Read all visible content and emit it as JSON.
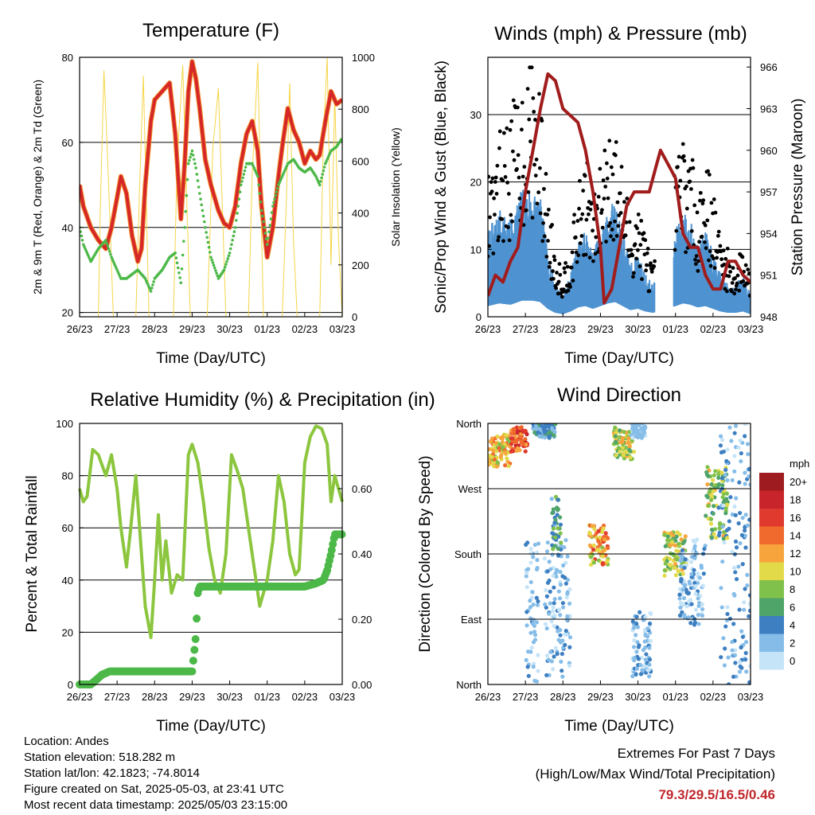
{
  "x_ticks": [
    "26/23",
    "27/23",
    "28/23",
    "29/23",
    "30/23",
    "01/23",
    "02/23",
    "03/23"
  ],
  "chart_data": [
    {
      "type": "line",
      "title": "Temperature (F)",
      "xlabel": "Time (Day/UTC)",
      "ylabel": "2m & 9m T (Red, Orange) & 2m Td (Green)",
      "ylabel_right": "Solar Insolation (Yellow)",
      "ylim": [
        19,
        80
      ],
      "yticks": [
        20,
        40,
        60,
        80
      ],
      "ylim_right": [
        0,
        1000
      ],
      "yticks_right": [
        0,
        200,
        400,
        600,
        800,
        1000
      ],
      "grid": true,
      "colors": {
        "temp2m": "#d62728",
        "temp9m": "#f28e2b",
        "dewpoint": "#4cb848",
        "solar": "#f5d547"
      },
      "series": [
        {
          "key": "temp2m",
          "x": [
            0,
            0.1,
            0.3,
            0.5,
            0.7,
            0.85,
            1.0,
            1.1,
            1.25,
            1.4,
            1.55,
            1.65,
            1.75,
            1.9,
            2.0,
            2.2,
            2.4,
            2.55,
            2.7,
            2.8,
            2.9,
            3.0,
            3.1,
            3.2,
            3.35,
            3.5,
            3.7,
            3.85,
            4.0,
            4.15,
            4.3,
            4.45,
            4.6,
            4.75,
            4.85,
            5.0,
            5.15,
            5.3,
            5.4,
            5.55,
            5.7,
            5.85,
            6.0,
            6.15,
            6.3,
            6.4,
            6.55,
            6.7,
            6.85,
            7.0
          ],
          "y": [
            50,
            45,
            40,
            37,
            35,
            40,
            47,
            52,
            48,
            38,
            32,
            35,
            50,
            65,
            70,
            72,
            74,
            62,
            42,
            55,
            72,
            79,
            75,
            68,
            56,
            50,
            44,
            41,
            40,
            45,
            55,
            62,
            65,
            58,
            45,
            33,
            40,
            52,
            59,
            68,
            63,
            60,
            55,
            58,
            56,
            57,
            65,
            72,
            69,
            70
          ]
        },
        {
          "key": "dewpoint",
          "x": [
            0,
            0.1,
            0.3,
            0.5,
            0.7,
            0.85,
            1.0,
            1.1,
            1.25,
            1.4,
            1.55,
            1.65,
            1.75,
            1.9,
            2.0,
            2.2,
            2.4,
            2.55,
            2.7,
            2.8,
            2.9,
            3.0,
            3.1,
            3.2,
            3.35,
            3.5,
            3.7,
            3.85,
            4.0,
            4.15,
            4.3,
            4.45,
            4.6,
            4.75,
            4.85,
            5.0,
            5.15,
            5.3,
            5.4,
            5.55,
            5.7,
            5.85,
            6.0,
            6.15,
            6.3,
            6.4,
            6.55,
            6.7,
            6.85,
            7.0
          ],
          "y": [
            40,
            36,
            32,
            35,
            37,
            33,
            30,
            28,
            28,
            29,
            30,
            29,
            28,
            25,
            28,
            30,
            33,
            34,
            27,
            40,
            55,
            58,
            54,
            48,
            40,
            33,
            28,
            30,
            34,
            40,
            50,
            55,
            55,
            52,
            44,
            36,
            45,
            50,
            52,
            55,
            56,
            54,
            53,
            54,
            52,
            50,
            55,
            58,
            59,
            61
          ]
        },
        {
          "key": "solar",
          "x": [
            0,
            0.5,
            0.55,
            0.65,
            0.75,
            0.9,
            1.5,
            1.6,
            1.7,
            1.85,
            2.5,
            2.6,
            2.75,
            2.95,
            3.4,
            3.55,
            3.7,
            3.9,
            4.5,
            4.6,
            4.75,
            4.9,
            5.4,
            5.5,
            5.6,
            5.7,
            5.8,
            6.4,
            6.5,
            6.6,
            6.7,
            6.8,
            6.9,
            7.0
          ],
          "y": [
            0,
            0,
            400,
            950,
            600,
            0,
            0,
            500,
            930,
            0,
            0,
            600,
            970,
            0,
            0,
            650,
            880,
            0,
            0,
            550,
            980,
            0,
            0,
            400,
            900,
            300,
            0,
            0,
            700,
            1000,
            200,
            850,
            300,
            0
          ]
        }
      ]
    },
    {
      "type": "line",
      "title": "Winds (mph) & Pressure (mb)",
      "xlabel": "Time (Day/UTC)",
      "ylabel": "Sonic/Prop Wind & Gust (Blue, Black)",
      "ylabel_right": "Station Pressure (Maroon)",
      "ylim": [
        0,
        38.5
      ],
      "yticks": [
        0,
        10,
        20,
        30
      ],
      "ylim_right": [
        948,
        966.7
      ],
      "yticks_right": [
        948,
        951,
        954,
        957,
        960,
        963,
        966
      ],
      "grid": true,
      "colors": {
        "wind": "#4f93d1",
        "gust": "#000000",
        "pressure": "#a11c1c"
      },
      "series": [
        {
          "key": "wind",
          "x": [
            0,
            0.3,
            0.6,
            0.9,
            1.2,
            1.4,
            1.6,
            1.8,
            2.0,
            2.2,
            2.4,
            2.6,
            2.8,
            3.0,
            3.2,
            3.4,
            3.6,
            3.8,
            4.0,
            4.2,
            4.4,
            5.0,
            5.2,
            5.4,
            5.6,
            5.8,
            6.0,
            6.2,
            6.4,
            6.6,
            6.8,
            7.0
          ],
          "y": [
            8,
            10,
            9,
            12,
            12,
            11,
            6,
            3,
            2,
            4,
            7,
            8,
            6,
            8,
            10,
            11,
            8,
            5,
            6,
            4,
            3,
            8,
            10,
            9,
            7,
            8,
            6,
            4,
            3,
            3,
            4,
            2
          ]
        },
        {
          "key": "gust",
          "x": [
            0,
            0.3,
            0.6,
            0.9,
            1.2,
            1.4,
            1.6,
            1.8,
            2.0,
            2.2,
            2.4,
            2.6,
            2.8,
            3.0,
            3.2,
            3.4,
            3.6,
            3.8,
            4.0,
            4.2,
            4.4,
            5.0,
            5.2,
            5.4,
            5.6,
            5.8,
            6.0,
            6.2,
            6.4,
            6.6,
            6.8,
            7.0
          ],
          "y": [
            18,
            22,
            25,
            28,
            32,
            26,
            15,
            8,
            6,
            9,
            15,
            20,
            14,
            18,
            25,
            22,
            18,
            12,
            14,
            10,
            6,
            18,
            22,
            20,
            15,
            20,
            15,
            10,
            8,
            6,
            9,
            5
          ]
        },
        {
          "key": "pressure",
          "x": [
            0,
            0.2,
            0.4,
            0.6,
            0.8,
            1.0,
            1.2,
            1.4,
            1.6,
            1.8,
            2.0,
            2.2,
            2.4,
            2.6,
            2.8,
            3.0,
            3.1,
            3.3,
            3.5,
            3.7,
            3.9,
            4.1,
            4.3,
            4.5,
            4.6,
            5.0,
            5.2,
            5.4,
            5.6,
            5.8,
            6.0,
            6.2,
            6.4,
            6.6,
            6.8,
            7.0
          ],
          "y": [
            949.5,
            951,
            950.5,
            952,
            953,
            957,
            960,
            963,
            965.5,
            965,
            963,
            962.5,
            962,
            960,
            957,
            953,
            949,
            950,
            953,
            956,
            957,
            957,
            957,
            959,
            960,
            958,
            954,
            953,
            953,
            951,
            950,
            950,
            952,
            952,
            951,
            950.5
          ]
        }
      ]
    },
    {
      "type": "line",
      "title": "Relative Humidity (%) & Precipitation (in)",
      "xlabel": "Time (Day/UTC)",
      "ylabel": "Percent & Total Rainfall",
      "ylim": [
        0,
        100
      ],
      "yticks": [
        0,
        20,
        40,
        60,
        80,
        100
      ],
      "ylim_right": [
        0,
        0.8
      ],
      "yticks_right": [
        0.0,
        0.2,
        0.4,
        0.6
      ],
      "grid": true,
      "colors": {
        "rh": "#8cc63f",
        "precip": "#4cb848"
      },
      "series": [
        {
          "key": "rh",
          "x": [
            0,
            0.1,
            0.2,
            0.35,
            0.5,
            0.7,
            0.85,
            1.0,
            1.1,
            1.25,
            1.35,
            1.5,
            1.6,
            1.75,
            1.9,
            2.0,
            2.1,
            2.2,
            2.3,
            2.45,
            2.6,
            2.75,
            2.9,
            3.0,
            3.15,
            3.3,
            3.45,
            3.6,
            3.75,
            3.9,
            4.05,
            4.2,
            4.35,
            4.5,
            4.65,
            4.8,
            5.0,
            5.15,
            5.3,
            5.45,
            5.6,
            5.75,
            5.85,
            6.0,
            6.15,
            6.3,
            6.45,
            6.6,
            6.7,
            6.8,
            6.9,
            7.0
          ],
          "y": [
            75,
            70,
            72,
            90,
            88,
            80,
            88,
            75,
            60,
            45,
            58,
            80,
            60,
            30,
            18,
            40,
            65,
            40,
            55,
            35,
            42,
            40,
            88,
            92,
            85,
            70,
            52,
            40,
            35,
            50,
            88,
            82,
            75,
            60,
            45,
            30,
            40,
            55,
            80,
            70,
            50,
            42,
            44,
            85,
            95,
            99,
            98,
            92,
            70,
            80,
            75,
            70
          ]
        },
        {
          "key": "precip",
          "x": [
            0,
            0.3,
            0.4,
            0.5,
            0.6,
            0.8,
            1.0,
            2.0,
            3.0,
            3.1,
            3.15,
            3.2,
            3.4,
            4.0,
            5.0,
            5.5,
            6.0,
            6.3,
            6.5,
            6.6,
            6.7,
            6.8,
            7.0
          ],
          "y": [
            0,
            0,
            0.01,
            0.02,
            0.03,
            0.04,
            0.04,
            0.04,
            0.04,
            0.15,
            0.28,
            0.3,
            0.3,
            0.3,
            0.3,
            0.3,
            0.3,
            0.31,
            0.32,
            0.35,
            0.4,
            0.46,
            0.46
          ]
        }
      ]
    },
    {
      "type": "scatter",
      "title": "Wind Direction",
      "xlabel": "Time (Day/UTC)",
      "ylabel": "Direction (Colored By Speed)",
      "ylim": [
        0,
        360
      ],
      "yticks": [
        "North",
        "East",
        "South",
        "West",
        "North"
      ],
      "grid": true,
      "colorbar": {
        "title": "mph",
        "labels": [
          "20+",
          "18",
          "16",
          "14",
          "12",
          "10",
          "8",
          "6",
          "4",
          "2",
          "0"
        ],
        "colors": [
          "#9e1c1f",
          "#c8242b",
          "#e0392e",
          "#f06a2e",
          "#f7a43c",
          "#e3da4a",
          "#80c14b",
          "#4fa46a",
          "#3d7fc1",
          "#86bde8",
          "#c6e4f7"
        ]
      },
      "clusters": [
        {
          "x": [
            0.0,
            0.6
          ],
          "dir": [
            300,
            345
          ],
          "speed": [
            8,
            14
          ]
        },
        {
          "x": [
            0.6,
            1.05
          ],
          "dir": [
            320,
            355
          ],
          "speed": [
            12,
            18
          ]
        },
        {
          "x": [
            1.2,
            1.8
          ],
          "dir": [
            340,
            360
          ],
          "speed": [
            2,
            6
          ]
        },
        {
          "x": [
            1.0,
            1.35
          ],
          "dir": [
            0,
            200
          ],
          "speed": [
            0,
            4
          ]
        },
        {
          "x": [
            1.5,
            2.2
          ],
          "dir": [
            10,
            200
          ],
          "speed": [
            0,
            4
          ]
        },
        {
          "x": [
            1.7,
            1.95
          ],
          "dir": [
            180,
            260
          ],
          "speed": [
            2,
            8
          ]
        },
        {
          "x": [
            2.7,
            3.2
          ],
          "dir": [
            165,
            220
          ],
          "speed": [
            8,
            16
          ]
        },
        {
          "x": [
            3.35,
            3.9
          ],
          "dir": [
            310,
            355
          ],
          "speed": [
            6,
            12
          ]
        },
        {
          "x": [
            3.8,
            4.2
          ],
          "dir": [
            340,
            360
          ],
          "speed": [
            0,
            3
          ]
        },
        {
          "x": [
            3.85,
            4.35
          ],
          "dir": [
            10,
            100
          ],
          "speed": [
            0,
            4
          ]
        },
        {
          "x": [
            4.7,
            5.3
          ],
          "dir": [
            150,
            210
          ],
          "speed": [
            6,
            12
          ]
        },
        {
          "x": [
            5.1,
            5.8
          ],
          "dir": [
            80,
            200
          ],
          "speed": [
            0,
            4
          ]
        },
        {
          "x": [
            5.8,
            6.4
          ],
          "dir": [
            200,
            300
          ],
          "speed": [
            4,
            12
          ]
        },
        {
          "x": [
            6.2,
            7.0
          ],
          "dir": [
            0,
            360
          ],
          "speed": [
            0,
            5
          ]
        }
      ]
    }
  ],
  "info": {
    "location": "Location: Andes",
    "elevation": "Station elevation: 518.282 m",
    "latlon": "Station lat/lon: 42.1823; -74.8014",
    "created": "Figure created on Sat, 2025-05-03, at 23:41 UTC",
    "recent": "Most recent data timestamp: 2025/05/03 23:15:00"
  },
  "extremes": {
    "heading": "Extremes For Past 7 Days",
    "subheading": "(High/Low/Max Wind/Total Precipitation)",
    "values": "79.3/29.5/16.5/0.46"
  }
}
